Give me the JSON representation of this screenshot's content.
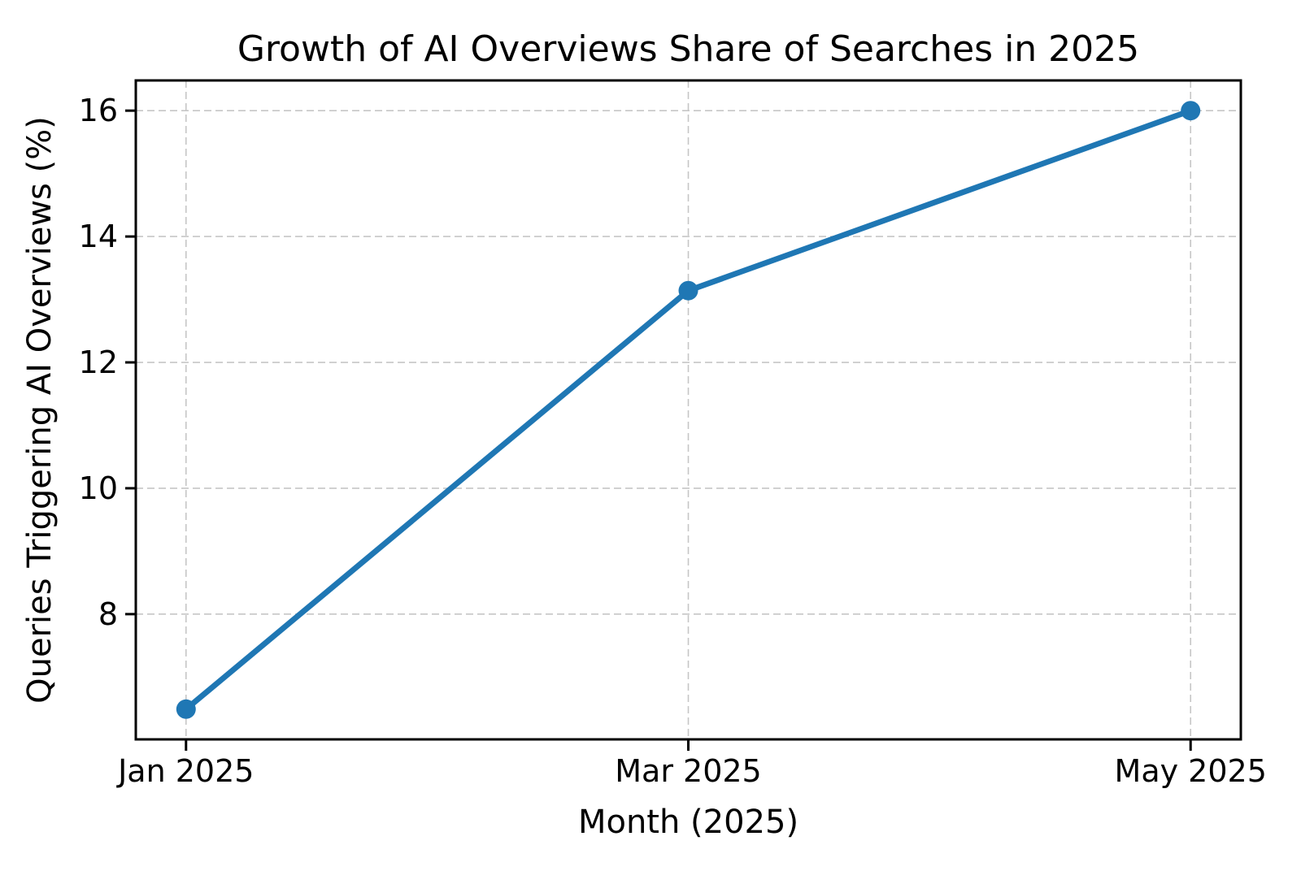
{
  "figure": {
    "background_color": "#ffffff"
  },
  "chart_data": {
    "type": "line",
    "title": "Growth of AI Overviews Share of Searches in 2025",
    "xlabel": "Month (2025)",
    "ylabel": "Queries Triggering AI Overviews (%)",
    "categories": [
      "Jan 2025",
      "Mar 2025",
      "May 2025"
    ],
    "values": [
      6.49,
      13.14,
      16.0
    ],
    "y_ticks": [
      8,
      10,
      12,
      14,
      16
    ],
    "ylim": [
      6.01,
      16.48
    ],
    "xlim": [
      -0.1,
      2.1
    ],
    "grid": "dashed-both-axes",
    "legend": "none",
    "marker": "circle",
    "line_color": "#1f77b4",
    "marker_color": "#1f77b4",
    "grid_color": "#c6c6c6",
    "axis_color": "#000000",
    "text_color": "#000000"
  }
}
